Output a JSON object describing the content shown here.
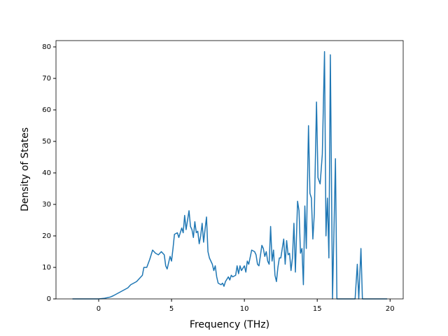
{
  "chart_data": {
    "type": "line",
    "xlabel": "Frequency (THz)",
    "ylabel": "Density of States",
    "x": [
      -1.8,
      0,
      0.4,
      0.8,
      1.0,
      1.2,
      1.4,
      1.6,
      1.8,
      2.0,
      2.2,
      2.4,
      2.6,
      2.8,
      3.0,
      3.1,
      3.3,
      3.5,
      3.6,
      3.7,
      3.9,
      4.1,
      4.3,
      4.5,
      4.6,
      4.7,
      4.9,
      5.0,
      5.1,
      5.2,
      5.4,
      5.5,
      5.7,
      5.8,
      5.9,
      6.0,
      6.2,
      6.3,
      6.4,
      6.5,
      6.6,
      6.7,
      6.8,
      6.9,
      7.0,
      7.1,
      7.2,
      7.4,
      7.5,
      7.6,
      7.8,
      7.9,
      8.0,
      8.1,
      8.2,
      8.4,
      8.5,
      8.6,
      8.7,
      8.9,
      9.0,
      9.1,
      9.2,
      9.4,
      9.5,
      9.6,
      9.7,
      9.8,
      10.0,
      10.1,
      10.2,
      10.3,
      10.5,
      10.7,
      10.8,
      10.9,
      11.0,
      11.2,
      11.3,
      11.4,
      11.5,
      11.6,
      11.7,
      11.8,
      11.9,
      12.0,
      12.1,
      12.2,
      12.3,
      12.4,
      12.5,
      12.7,
      12.8,
      12.9,
      13.0,
      13.1,
      13.2,
      13.3,
      13.4,
      13.5,
      13.65,
      13.75,
      13.85,
      13.95,
      14.05,
      14.15,
      14.25,
      14.4,
      14.5,
      14.6,
      14.7,
      14.8,
      14.95,
      15.05,
      15.2,
      15.35,
      15.5,
      15.6,
      15.7,
      15.8,
      15.9,
      16.05,
      16.25,
      16.35,
      17.6,
      17.75,
      17.85,
      18.0,
      18.1,
      19.8
    ],
    "series": [
      {
        "color": "#1f77b4",
        "values": [
          0,
          0,
          0.2,
          0.6,
          1.0,
          1.5,
          2,
          2.5,
          3,
          3.5,
          4.5,
          5,
          5.5,
          6.5,
          7.5,
          10,
          10,
          12.5,
          14,
          15.5,
          14.5,
          14,
          15,
          14,
          10.5,
          9.5,
          13.5,
          12,
          16,
          20.5,
          21,
          19.5,
          22.5,
          21,
          26.5,
          22,
          28,
          23,
          22,
          19.5,
          24.5,
          21,
          21.5,
          17.5,
          20,
          24,
          18,
          26,
          15,
          13,
          11,
          9,
          10.5,
          7,
          5,
          4.5,
          5,
          4,
          5.5,
          7,
          6,
          7.5,
          7,
          7.5,
          10.5,
          8,
          10.5,
          9,
          10.5,
          8.5,
          12,
          11,
          15.5,
          15,
          14,
          11,
          10.5,
          17,
          16,
          13.5,
          15,
          12,
          11,
          23,
          12,
          15.5,
          7.5,
          5.5,
          10,
          13,
          13,
          19,
          11,
          18.5,
          14,
          14.5,
          9,
          13,
          24,
          8.5,
          31,
          28,
          14.5,
          16,
          4.5,
          29.5,
          16,
          55,
          33.5,
          32,
          19,
          27,
          62.5,
          38.5,
          36.5,
          46,
          78.5,
          20,
          32,
          13,
          77.5,
          0,
          44.5,
          0,
          0,
          11,
          0,
          16,
          0,
          0
        ]
      }
    ],
    "xlim": [
      -2.93,
      20.9
    ],
    "ylim": [
      0,
      82
    ],
    "xticks": [
      0,
      5,
      10,
      15,
      20
    ],
    "yticks": [
      0,
      10,
      20,
      30,
      40,
      50,
      60,
      70,
      80
    ],
    "grid": false
  }
}
